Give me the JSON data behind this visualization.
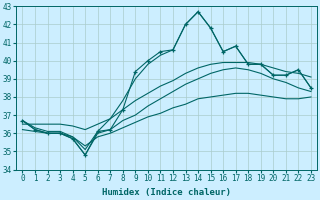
{
  "xlabel": "Humidex (Indice chaleur)",
  "line_color": "#006666",
  "bg_color": "#cceeff",
  "grid_color": "#aacccc",
  "ylim": [
    34,
    43
  ],
  "yticks": [
    34,
    35,
    36,
    37,
    38,
    39,
    40,
    41,
    42,
    43
  ],
  "xticks": [
    0,
    1,
    2,
    3,
    4,
    5,
    6,
    7,
    8,
    9,
    10,
    11,
    12,
    13,
    14,
    15,
    16,
    17,
    18,
    19,
    20,
    21,
    22,
    23
  ],
  "x": [
    0,
    1,
    2,
    3,
    4,
    5,
    6,
    7,
    8,
    9,
    10,
    11,
    12,
    13,
    14,
    15,
    16,
    17,
    18,
    19,
    20,
    21,
    22,
    23
  ],
  "y_jagged": [
    36.7,
    36.2,
    36.0,
    36.0,
    35.7,
    34.8,
    36.1,
    36.2,
    37.3,
    39.4,
    40.0,
    40.5,
    40.6,
    42.0,
    42.7,
    41.8,
    40.5,
    40.8,
    39.8,
    39.8,
    39.2,
    39.2,
    39.5,
    38.5
  ],
  "y_env_top": [
    36.7,
    36.3,
    36.1,
    36.1,
    35.8,
    35.1,
    36.1,
    36.8,
    37.8,
    39.0,
    39.8,
    40.3,
    40.6,
    42.0,
    42.7,
    41.8,
    40.5,
    40.8,
    39.8,
    39.8,
    39.2,
    39.2,
    39.5,
    38.5
  ],
  "y_env_bot": [
    36.7,
    36.2,
    36.0,
    36.0,
    35.7,
    34.8,
    36.0,
    36.2,
    36.7,
    37.0,
    37.5,
    37.9,
    38.3,
    38.7,
    39.0,
    39.3,
    39.5,
    39.6,
    39.5,
    39.3,
    39.0,
    38.8,
    38.5,
    38.3
  ],
  "y_trend_top": [
    36.5,
    36.5,
    36.5,
    36.5,
    36.4,
    36.2,
    36.5,
    36.8,
    37.3,
    37.8,
    38.2,
    38.6,
    38.9,
    39.3,
    39.6,
    39.8,
    39.9,
    39.9,
    39.9,
    39.8,
    39.6,
    39.4,
    39.3,
    39.1
  ],
  "y_trend_bot": [
    36.2,
    36.1,
    36.0,
    36.0,
    35.8,
    35.3,
    35.8,
    36.0,
    36.3,
    36.6,
    36.9,
    37.1,
    37.4,
    37.6,
    37.9,
    38.0,
    38.1,
    38.2,
    38.2,
    38.1,
    38.0,
    37.9,
    37.9,
    38.0
  ]
}
